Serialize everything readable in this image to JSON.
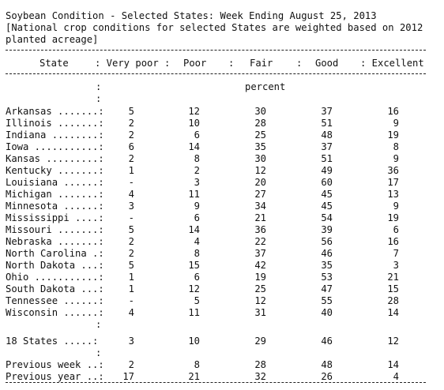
{
  "title": "Soybean Condition - Selected States: Week Ending August 25, 2013",
  "note_line1": "[National crop conditions for selected States are weighted based on 2012",
  "note_line2": "planted acreage]",
  "headers": {
    "state": "State",
    "very_poor": ": Very poor :",
    "poor": "Poor",
    "fair": "Fair",
    "good": "Good",
    "excellent": ": Excellent",
    "sep1": ":",
    "sep2": ":",
    "sep3": ":"
  },
  "unit": "percent",
  "colon": ":",
  "rows": [
    {
      "label": "Arkansas .......:",
      "values": [
        "5",
        "12",
        "30",
        "37",
        "16"
      ]
    },
    {
      "label": "Illinois .......:",
      "values": [
        "2",
        "10",
        "28",
        "51",
        "9"
      ]
    },
    {
      "label": "Indiana ........:",
      "values": [
        "2",
        "6",
        "25",
        "48",
        "19"
      ]
    },
    {
      "label": "Iowa ...........:",
      "values": [
        "6",
        "14",
        "35",
        "37",
        "8"
      ]
    },
    {
      "label": "Kansas .........:",
      "values": [
        "2",
        "8",
        "30",
        "51",
        "9"
      ]
    },
    {
      "label": "Kentucky .......:",
      "values": [
        "1",
        "2",
        "12",
        "49",
        "36"
      ]
    },
    {
      "label": "Louisiana ......:",
      "values": [
        "-",
        "3",
        "20",
        "60",
        "17"
      ]
    },
    {
      "label": "Michigan .......:",
      "values": [
        "4",
        "11",
        "27",
        "45",
        "13"
      ]
    },
    {
      "label": "Minnesota ......:",
      "values": [
        "3",
        "9",
        "34",
        "45",
        "9"
      ]
    },
    {
      "label": "Mississippi ....:",
      "values": [
        "-",
        "6",
        "21",
        "54",
        "19"
      ]
    },
    {
      "label": "Missouri .......:",
      "values": [
        "5",
        "14",
        "36",
        "39",
        "6"
      ]
    },
    {
      "label": "Nebraska .......:",
      "values": [
        "2",
        "4",
        "22",
        "56",
        "16"
      ]
    },
    {
      "label": "North Carolina .:",
      "values": [
        "2",
        "8",
        "37",
        "46",
        "7"
      ]
    },
    {
      "label": "North Dakota ...:",
      "values": [
        "5",
        "15",
        "42",
        "35",
        "3"
      ]
    },
    {
      "label": "Ohio ...........:",
      "values": [
        "1",
        "6",
        "19",
        "53",
        "21"
      ]
    },
    {
      "label": "South Dakota ...:",
      "values": [
        "1",
        "12",
        "25",
        "47",
        "15"
      ]
    },
    {
      "label": "Tennessee ......:",
      "values": [
        "-",
        "5",
        "12",
        "55",
        "28"
      ]
    },
    {
      "label": "Wisconsin ......:",
      "values": [
        "4",
        "11",
        "31",
        "40",
        "14"
      ]
    }
  ],
  "total_row": {
    "label": "18 States .....:",
    "values": [
      "3",
      "10",
      "29",
      "46",
      "12"
    ]
  },
  "prev_week": {
    "label": "Previous week ..:",
    "values": [
      "2",
      "8",
      "28",
      "48",
      "14"
    ]
  },
  "prev_year": {
    "label": "Previous year ..:",
    "values": [
      "17",
      "21",
      "32",
      "26",
      "4"
    ]
  }
}
